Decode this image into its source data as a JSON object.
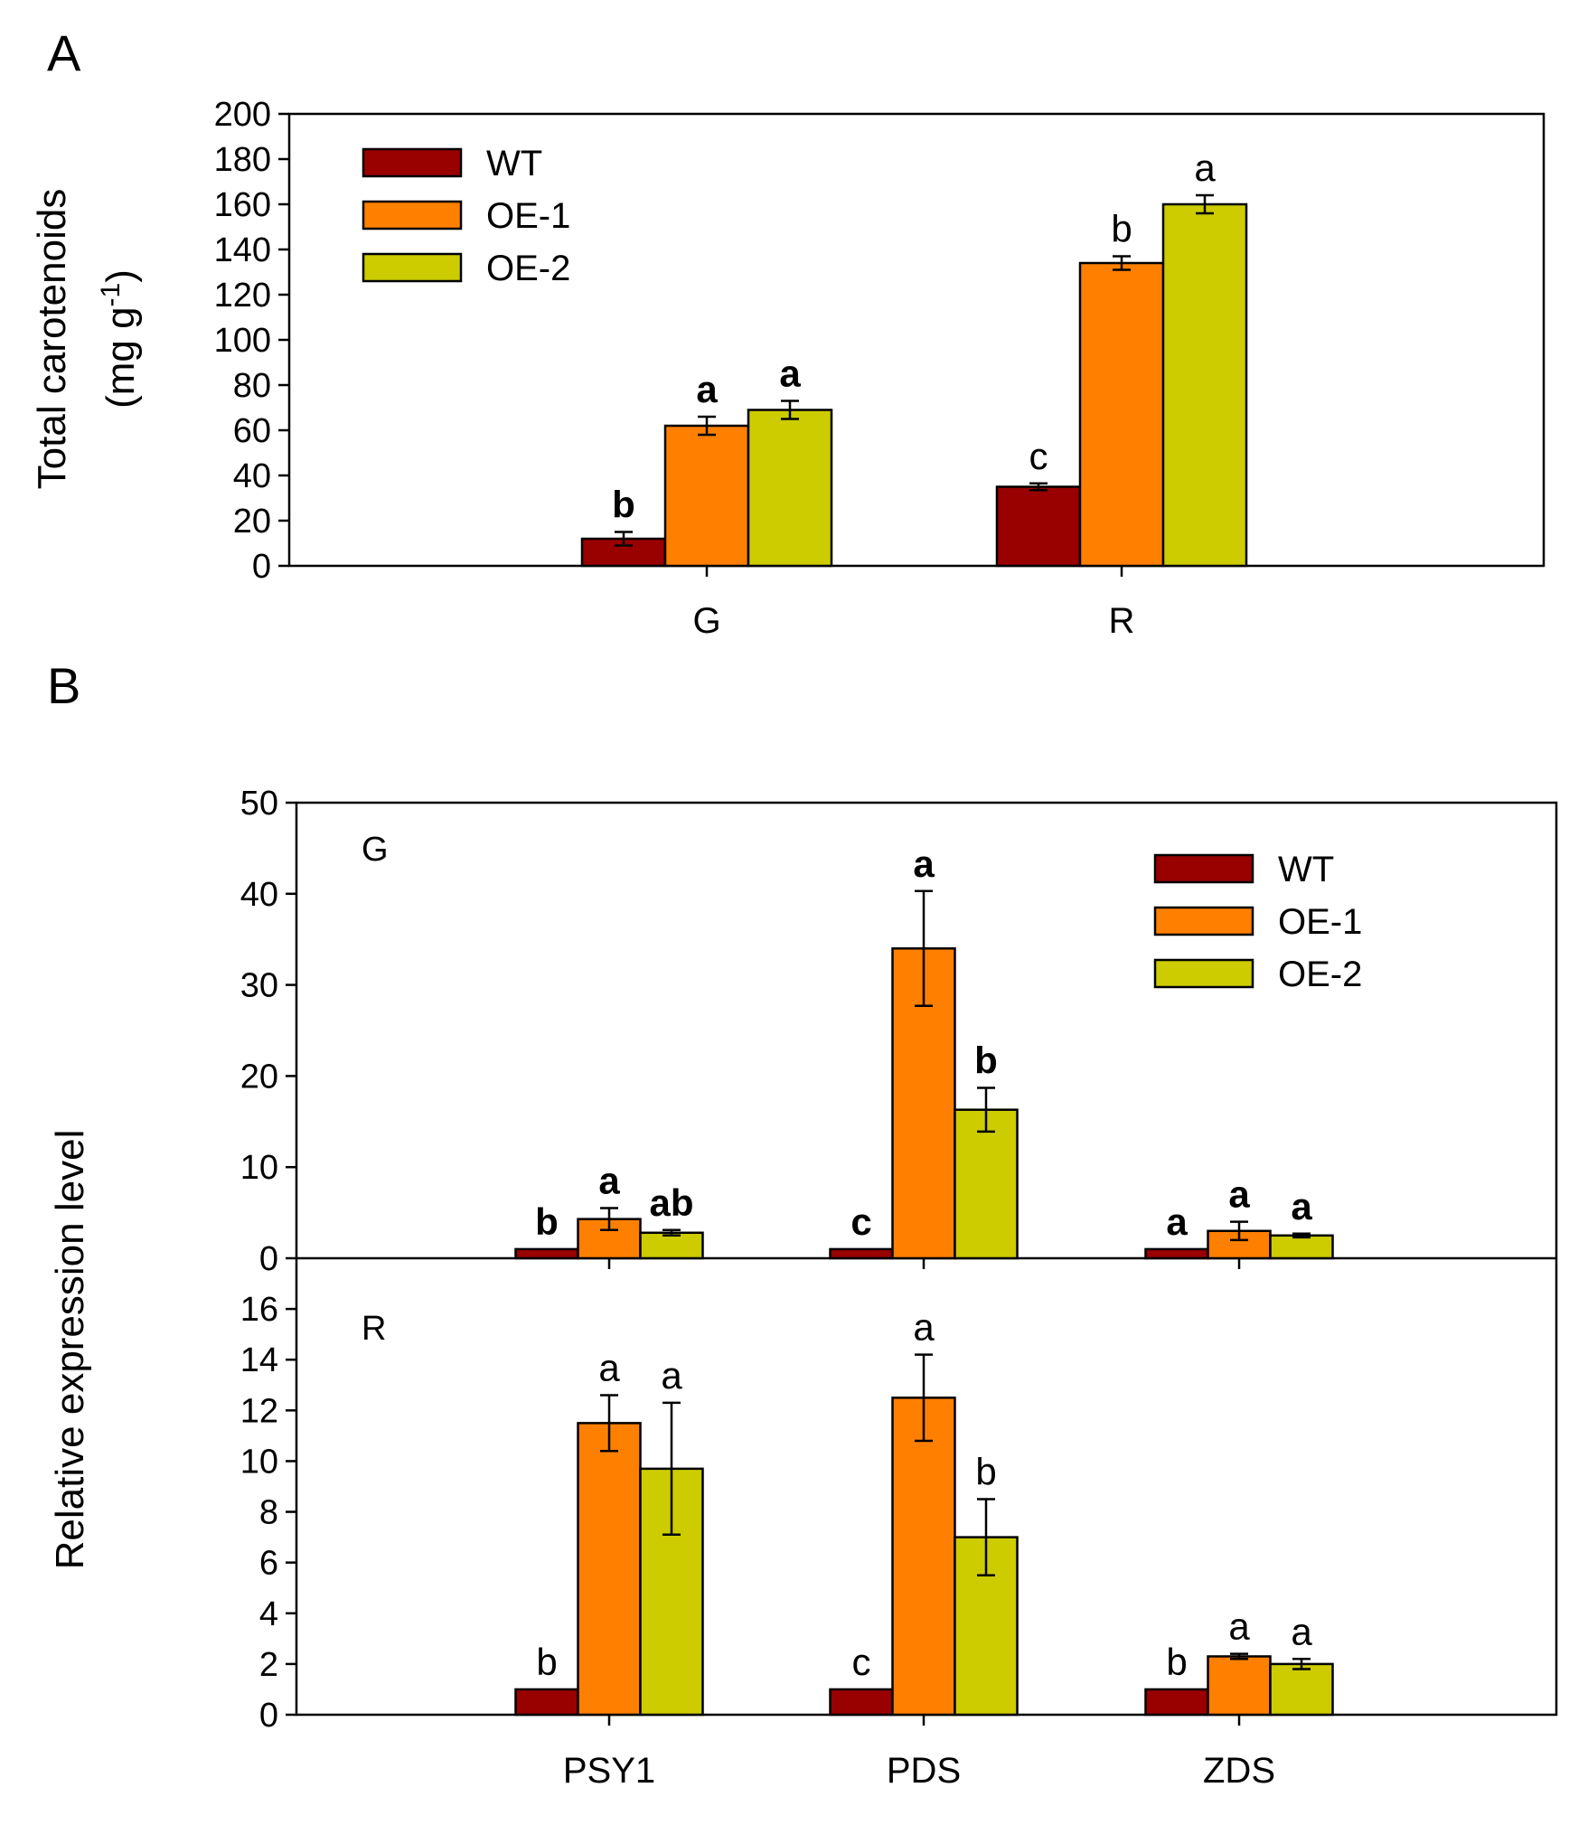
{
  "colors": {
    "WT": "#990000",
    "OE-1": "#FF8000",
    "OE-2": "#CCCC00"
  },
  "chart_data": [
    {
      "id": "A",
      "type": "bar",
      "panel_label": "A",
      "ylabel_line1": "Total carotenoids",
      "ylabel_line2": "(mg g",
      "ylabel_sup": "-1",
      "ylabel_close": ")",
      "ylim": [
        0,
        200
      ],
      "yticks": [
        0,
        20,
        40,
        60,
        80,
        100,
        120,
        140,
        160,
        180,
        200
      ],
      "categories": [
        "G",
        "R"
      ],
      "legend": [
        "WT",
        "OE-1",
        "OE-2"
      ],
      "legend_position": "top-left",
      "bold_letters_by_category": [
        true,
        false
      ],
      "series": [
        {
          "name": "WT",
          "values": [
            12,
            35
          ],
          "errors": [
            3,
            1.5
          ],
          "letters": [
            "b",
            "c"
          ]
        },
        {
          "name": "OE-1",
          "values": [
            62,
            134
          ],
          "errors": [
            4,
            3
          ],
          "letters": [
            "a",
            "b"
          ]
        },
        {
          "name": "OE-2",
          "values": [
            69,
            160
          ],
          "errors": [
            4,
            4
          ],
          "letters": [
            "a",
            "a"
          ]
        }
      ]
    },
    {
      "id": "B-G",
      "type": "bar",
      "panel_label": "B",
      "sublabel": "G",
      "ylim": [
        0,
        50
      ],
      "yticks": [
        0,
        10,
        20,
        30,
        40,
        50
      ],
      "categories": [
        "PSY1",
        "PDS",
        "ZDS"
      ],
      "legend": [
        "WT",
        "OE-1",
        "OE-2"
      ],
      "legend_position": "top-right",
      "bold_letters": true,
      "series": [
        {
          "name": "WT",
          "values": [
            1,
            1,
            1
          ],
          "errors": [
            0,
            0,
            0
          ],
          "letters": [
            "b",
            "c",
            "a"
          ]
        },
        {
          "name": "OE-1",
          "values": [
            4.3,
            34,
            3
          ],
          "errors": [
            1.2,
            6.3,
            1
          ],
          "letters": [
            "a",
            "a",
            "a"
          ]
        },
        {
          "name": "OE-2",
          "values": [
            2.8,
            16.3,
            2.5
          ],
          "errors": [
            0.3,
            2.4,
            0.2
          ],
          "letters": [
            "ab",
            "b",
            "a"
          ]
        }
      ]
    },
    {
      "id": "B-R",
      "type": "bar",
      "sublabel": "R",
      "ylabel": "Relative expression level",
      "ylim": [
        0,
        18
      ],
      "yticks": [
        0,
        2,
        4,
        6,
        8,
        10,
        12,
        14,
        16
      ],
      "categories": [
        "PSY1",
        "PDS",
        "ZDS"
      ],
      "bold_letters": false,
      "series": [
        {
          "name": "WT",
          "values": [
            1,
            1,
            1
          ],
          "errors": [
            0,
            0,
            0
          ],
          "letters": [
            "b",
            "c",
            "b"
          ]
        },
        {
          "name": "OE-1",
          "values": [
            11.5,
            12.5,
            2.3
          ],
          "errors": [
            1.1,
            1.7,
            0.1
          ],
          "letters": [
            "a",
            "a",
            "a"
          ]
        },
        {
          "name": "OE-2",
          "values": [
            9.7,
            7.0,
            2.0
          ],
          "errors": [
            2.6,
            1.5,
            0.2
          ],
          "letters": [
            "a",
            "b",
            "a"
          ]
        }
      ]
    }
  ]
}
